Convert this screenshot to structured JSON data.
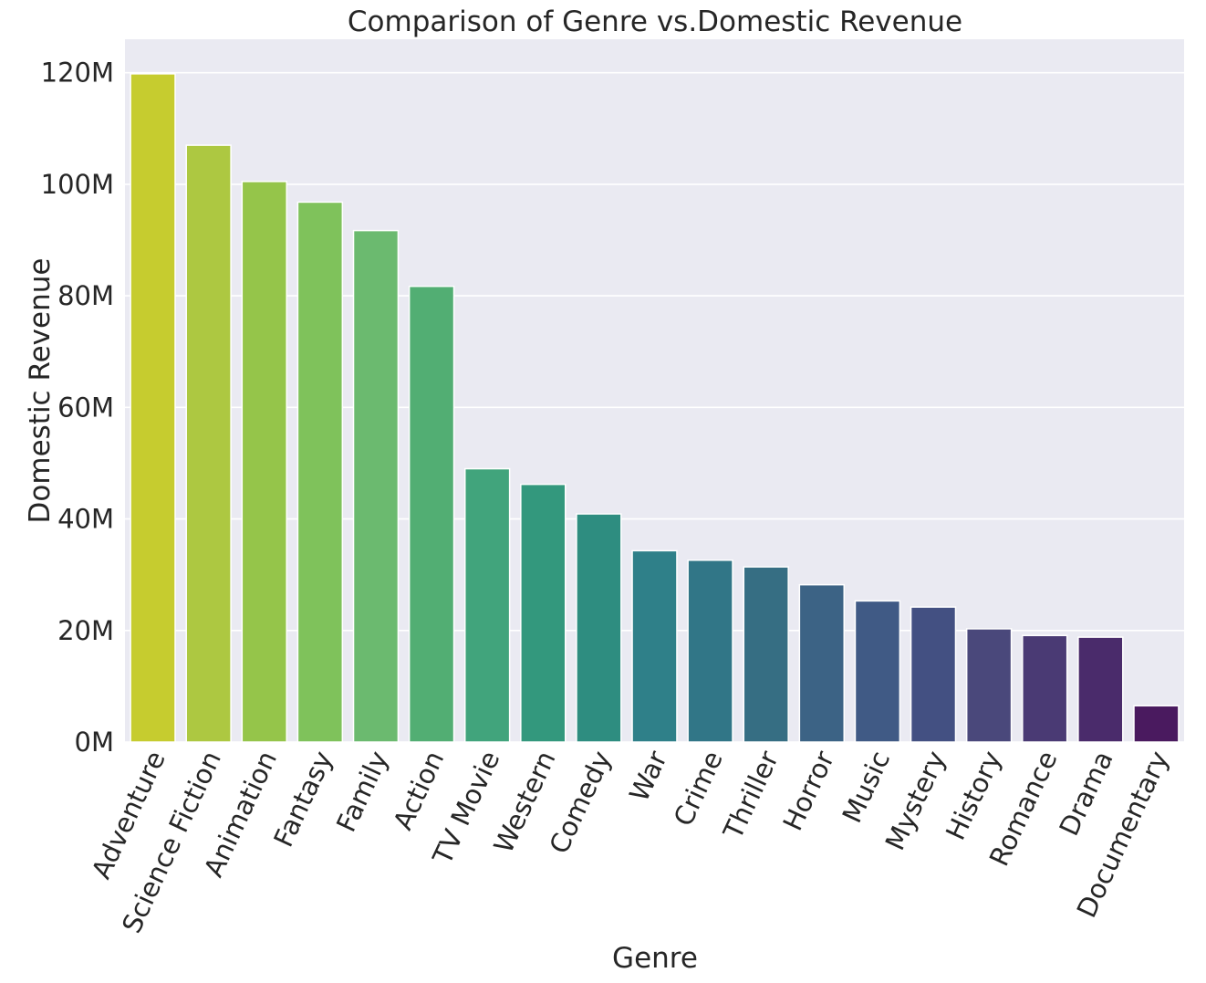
{
  "chart_data": {
    "type": "bar",
    "title": "Comparison of Genre vs.Domestic  Revenue",
    "xlabel": "Genre",
    "ylabel": "Domestic Revenue",
    "ylim": [
      0,
      126
    ],
    "yticks": [
      0,
      20,
      40,
      60,
      80,
      100,
      120
    ],
    "ytick_labels": [
      "0M",
      "20M",
      "40M",
      "60M",
      "80M",
      "100M",
      "120M"
    ],
    "grid": true,
    "legend": "none",
    "categories": [
      "Adventure",
      "Science Fiction",
      "Animation",
      "Fantasy",
      "Family",
      "Action",
      "TV Movie",
      "Western",
      "Comedy",
      "War",
      "Crime",
      "Thriller",
      "Horror",
      "Music",
      "Mystery",
      "History",
      "Romance",
      "Drama",
      "Documentary"
    ],
    "values": [
      119.8,
      107.0,
      100.5,
      96.8,
      91.7,
      81.7,
      49.0,
      46.2,
      40.9,
      34.3,
      32.6,
      31.4,
      28.2,
      25.3,
      24.2,
      20.3,
      19.1,
      18.8,
      6.5
    ],
    "colors": [
      "#c6cc2f",
      "#adc841",
      "#95c54a",
      "#7fc25b",
      "#6bba6f",
      "#52ae73",
      "#41a47c",
      "#33987d",
      "#2e8d80",
      "#2f8089",
      "#317687",
      "#366e83",
      "#3c6385",
      "#405a85",
      "#435082",
      "#4a487b",
      "#4a3a74",
      "#4a2b6b",
      "#4a1a5f"
    ]
  }
}
